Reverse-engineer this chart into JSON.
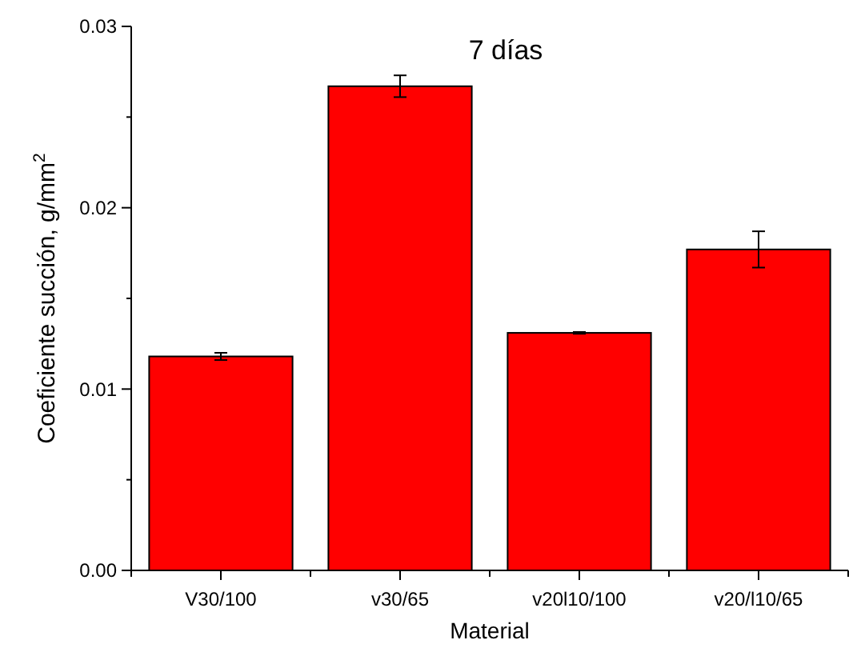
{
  "chart_data": {
    "type": "bar",
    "title": "7 días",
    "xlabel": "Material",
    "ylabel": "Coeficiente succión, g/mm$^{2}$",
    "categories": [
      "V30/100",
      "v30/65",
      "v20l10/100",
      "v20/l10/65"
    ],
    "values": [
      0.0118,
      0.0267,
      0.0131,
      0.0177
    ],
    "errors": [
      0.0002,
      0.0006,
      5e-05,
      0.001
    ],
    "color": "#ff0000",
    "ylim": [
      0,
      0.03
    ],
    "yticks": [
      {
        "value": 0,
        "label": "0.00"
      },
      {
        "value": 0.005,
        "label": null
      },
      {
        "value": 0.01,
        "label": "0.01"
      },
      {
        "value": 0.015,
        "label": null
      },
      {
        "value": 0.02,
        "label": "0.02"
      },
      {
        "value": 0.025,
        "label": null
      },
      {
        "value": 0.03,
        "label": "0.03"
      }
    ],
    "grid": false
  }
}
